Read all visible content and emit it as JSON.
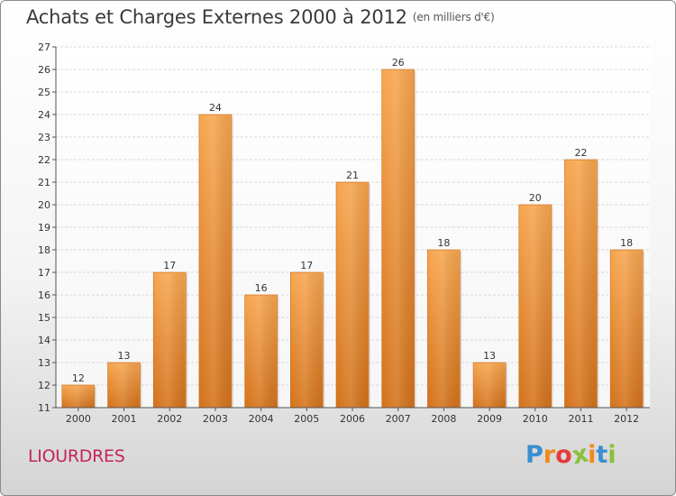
{
  "header": {
    "title": "Achats et Charges Externes 2000 à 2012",
    "subtitle": "(en milliers d'€)"
  },
  "commune": "LIOURDRES",
  "logo": {
    "text": "Proxiti",
    "letters": [
      {
        "ch": "P",
        "color": "#3a8fd0"
      },
      {
        "ch": "r",
        "color": "#f08a1c"
      },
      {
        "ch": "o",
        "color": "#e43a3a"
      },
      {
        "ch": "x",
        "color": "#8ac03c"
      },
      {
        "ch": "i",
        "color": "#f08a1c"
      },
      {
        "ch": "t",
        "color": "#3a8fd0"
      },
      {
        "ch": "i",
        "color": "#8ac03c"
      }
    ]
  },
  "chart_data": {
    "type": "bar",
    "categories": [
      "2000",
      "2001",
      "2002",
      "2003",
      "2004",
      "2005",
      "2006",
      "2007",
      "2008",
      "2009",
      "2010",
      "2011",
      "2012"
    ],
    "values": [
      12,
      13,
      17,
      24,
      16,
      17,
      21,
      26,
      18,
      13,
      20,
      22,
      18
    ],
    "title": "Achats et Charges Externes 2000 à 2012",
    "subtitle": "(en milliers d'€)",
    "ylim": [
      11,
      27
    ],
    "yticks": [
      11,
      12,
      13,
      14,
      15,
      16,
      17,
      18,
      19,
      20,
      21,
      22,
      23,
      24,
      25,
      26,
      27
    ],
    "grid": true,
    "bar_color": "#f0913a",
    "bar_color_light": "#f7a85a",
    "bar_color_dark": "#d0731e"
  }
}
